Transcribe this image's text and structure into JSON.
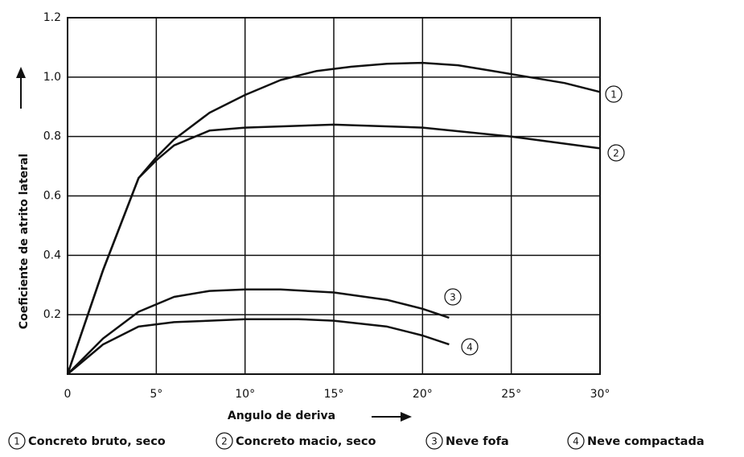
{
  "chart_data": {
    "type": "line",
    "xlabel": "Angulo de deriva",
    "ylabel": "Coeficiente de atrito lateral",
    "xlim": [
      0,
      30
    ],
    "xticks": [
      0,
      {
        "value": 5,
        "label": "5°"
      },
      {
        "value": 10,
        "label": "10°"
      },
      {
        "value": 15,
        "label": "15°"
      },
      {
        "value": 20,
        "label": "20°"
      },
      {
        "value": 25,
        "label": "25°"
      },
      {
        "value": 30,
        "label": "30°"
      }
    ],
    "ylim": [
      0,
      1.2
    ],
    "yticks": [
      0.2,
      0.4,
      0.6,
      0.8,
      {
        "value": 1,
        "label": "1.0"
      },
      1.2
    ],
    "grid": true,
    "series": [
      {
        "label": "1",
        "name": "Concreto bruto, seco",
        "color": "#111111",
        "x": [
          0,
          2,
          4,
          5,
          6,
          8,
          10,
          12,
          14,
          16,
          18,
          20,
          22,
          24,
          26,
          28,
          30
        ],
        "values": [
          0,
          0.35,
          0.66,
          0.73,
          0.79,
          0.88,
          0.94,
          0.99,
          1.02,
          1.035,
          1.045,
          1.048,
          1.04,
          1.02,
          1.0,
          0.98,
          0.95
        ]
      },
      {
        "label": "2",
        "name": "Concreto macio, seco",
        "color": "#111111",
        "x": [
          0,
          2,
          4,
          5,
          6,
          8,
          10,
          15,
          20,
          25,
          30
        ],
        "values": [
          0,
          0.35,
          0.66,
          0.72,
          0.77,
          0.82,
          0.83,
          0.84,
          0.83,
          0.8,
          0.76
        ]
      },
      {
        "label": "3",
        "name": "Neve fofa",
        "color": "#111111",
        "x": [
          0,
          2,
          4,
          6,
          8,
          10,
          12,
          15,
          18,
          20,
          21.5
        ],
        "values": [
          0,
          0.12,
          0.21,
          0.26,
          0.28,
          0.285,
          0.285,
          0.275,
          0.25,
          0.22,
          0.19
        ]
      },
      {
        "label": "4",
        "name": "Neve compactada",
        "color": "#111111",
        "x": [
          0,
          2,
          4,
          6,
          8,
          10,
          13,
          15,
          18,
          20,
          21.5
        ],
        "values": [
          0,
          0.1,
          0.16,
          0.175,
          0.18,
          0.185,
          0.185,
          0.18,
          0.16,
          0.13,
          0.1
        ]
      }
    ]
  }
}
